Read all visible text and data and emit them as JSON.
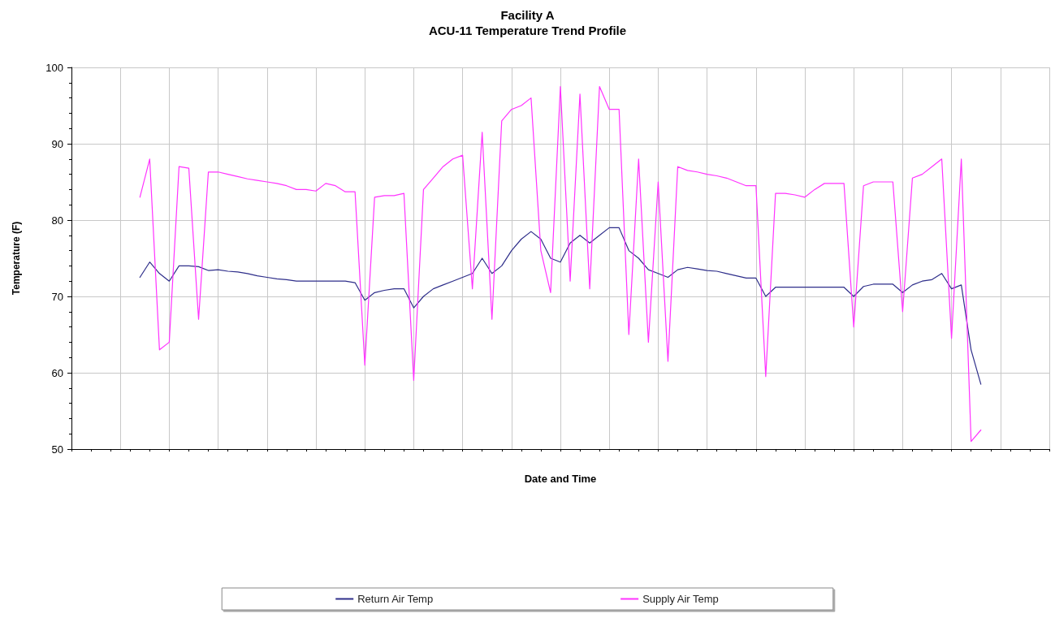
{
  "chart_data": {
    "type": "line",
    "title": "Facility A",
    "subtitle": "ACU-11 Temperature Trend Profile",
    "xlabel": "Date and Time",
    "ylabel": "Temperature (F)",
    "categories": [
      null,
      null,
      null,
      null,
      null,
      null,
      null,
      null,
      null,
      null,
      null,
      null,
      null,
      null,
      null,
      null,
      null,
      null,
      null,
      null,
      null,
      null,
      null,
      null,
      null,
      null,
      null,
      null,
      null,
      null,
      null,
      null,
      null,
      null,
      null,
      null,
      null,
      null,
      null,
      null,
      null,
      null,
      null,
      null,
      null,
      null,
      null,
      null,
      null,
      null,
      null,
      null,
      null,
      null,
      null,
      null,
      null,
      null,
      null,
      null,
      null,
      null,
      null,
      null,
      null,
      null,
      null,
      null,
      null,
      null,
      null,
      null,
      null,
      null,
      null,
      null,
      null,
      null,
      null,
      null,
      null,
      null,
      null,
      null,
      null,
      null,
      null,
      null,
      null,
      null,
      null,
      null,
      null,
      null,
      null,
      null,
      null,
      null,
      null,
      null,
      null
    ],
    "series": [
      {
        "name": "Return Air Temp",
        "color": "#2e2e8a",
        "values": [
          null,
          null,
          null,
          null,
          null,
          null,
          null,
          72.5,
          74.5,
          73,
          72,
          74,
          74,
          73.9,
          73.4,
          73.5,
          73.3,
          73.2,
          73,
          72.7,
          72.5,
          72.3,
          72.2,
          72,
          72,
          72,
          72,
          72,
          72,
          71.8,
          69.5,
          70.5,
          70.8,
          71,
          71,
          68.5,
          70,
          71,
          71.5,
          72,
          72.5,
          73,
          75,
          73,
          74,
          76,
          77.5,
          78.5,
          77.5,
          75,
          74.5,
          77,
          78,
          77,
          78,
          79,
          79,
          76,
          75,
          73.5,
          73,
          72.5,
          73.5,
          73.8,
          73.6,
          73.4,
          73.3,
          73,
          72.7,
          72.4,
          72.4,
          70,
          71.2,
          71.2,
          71.2,
          71.2,
          71.2,
          71.2,
          71.2,
          71.2,
          70,
          71.3,
          71.6,
          71.6,
          71.6,
          70.5,
          71.5,
          72,
          72.2,
          73,
          71,
          71.5,
          63,
          58.5,
          null,
          null,
          null,
          null,
          null,
          null,
          null
        ]
      },
      {
        "name": "Supply Air Temp",
        "color": "#ff33ff",
        "values": [
          null,
          null,
          null,
          null,
          null,
          null,
          null,
          83,
          88,
          63,
          64,
          87,
          86.8,
          67,
          86.3,
          86.3,
          86,
          85.7,
          85.4,
          85.2,
          85,
          84.8,
          84.5,
          84,
          84,
          83.8,
          84.8,
          84.5,
          83.7,
          83.7,
          61,
          83,
          83.2,
          83.2,
          83.5,
          59,
          84,
          85.5,
          87,
          88,
          88.5,
          71,
          91.5,
          67,
          93,
          94.5,
          95,
          96,
          76,
          70.5,
          97.5,
          72,
          96.5,
          71,
          97.5,
          94.5,
          94.5,
          65,
          88,
          64,
          85,
          61.5,
          87,
          86.5,
          86.3,
          86,
          85.8,
          85.5,
          85,
          84.5,
          84.5,
          59.5,
          83.5,
          83.5,
          83.3,
          83,
          84,
          84.8,
          84.8,
          84.8,
          66,
          84.5,
          85,
          85,
          85,
          68,
          85.5,
          86,
          87,
          88,
          64.5,
          88,
          51,
          52.5,
          null,
          null,
          null,
          null,
          null,
          null,
          null
        ]
      }
    ],
    "ylim": [
      50,
      100
    ],
    "yticks": [
      50,
      60,
      70,
      80,
      90,
      100
    ],
    "grid": true,
    "legend": "bottom",
    "marker": "none",
    "line_style": "solid",
    "tick_labels": "y"
  }
}
